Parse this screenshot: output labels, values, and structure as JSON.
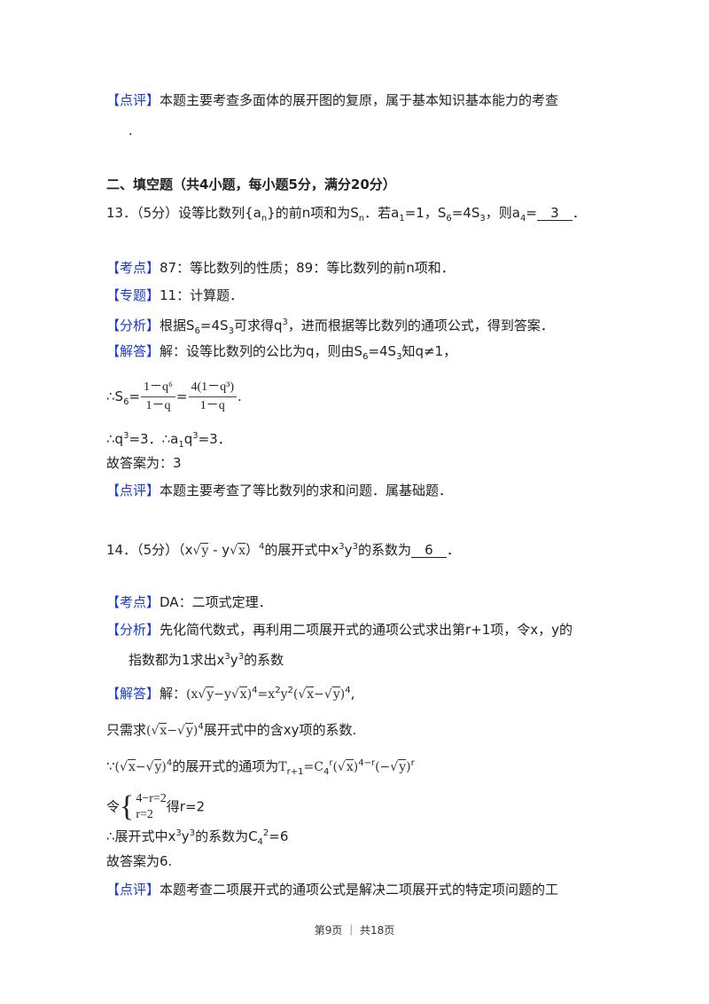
{
  "lines": [
    [
      {
        "tag": "【点评】"
      },
      {
        "t": "本题主要考查多面体的展开图的复原，属于基本知识基本能力的考查"
      }
    ],
    [
      {
        "t": "."
      }
    ],
    [
      {
        "t": "二、填空题（共4小题，每小题5分，满分20分）"
      }
    ],
    [
      {
        "t": "13．（5分）设等比数列{a"
      },
      {
        "sub": "n"
      },
      {
        "t": "}的前n项和为S"
      },
      {
        "sub": "n"
      },
      {
        "t": "．若a"
      },
      {
        "sub": "1"
      },
      {
        "t": "=1，S"
      },
      {
        "sub": "6"
      },
      {
        "t": "=4S"
      },
      {
        "sub": "3"
      },
      {
        "t": "，则a"
      },
      {
        "sub": "4"
      },
      {
        "t": "="
      },
      {
        "blank": "3"
      },
      {
        "t": "．"
      }
    ],
    [
      {
        "tag": "【考点】"
      },
      {
        "t": "87：等比数列的性质；89：等比数列的前n项和．"
      }
    ],
    [
      {
        "tag": "【专题】"
      },
      {
        "t": "11：计算题．"
      }
    ],
    [
      {
        "tag": "【分析】"
      },
      {
        "t": "根据S"
      },
      {
        "sub": "6"
      },
      {
        "t": "=4S"
      },
      {
        "sub": "3"
      },
      {
        "t": "可求得q"
      },
      {
        "sup": "3"
      },
      {
        "t": "，进而根据等比数列的通项公式，得到答案．"
      }
    ],
    [
      {
        "tag": "【解答】"
      },
      {
        "t": "解：设等比数列的公比为q，则由S"
      },
      {
        "sub": "6"
      },
      {
        "t": "=4S"
      },
      {
        "sub": "3"
      },
      {
        "t": "知q≠1，"
      }
    ],
    [
      {
        "t": "∴S"
      },
      {
        "sub": "6"
      },
      {
        "t": "="
      },
      {
        "frac": [
          "1－q⁶",
          "1－q"
        ]
      },
      {
        "t": "="
      },
      {
        "frac": [
          "4(1－q³)",
          "1－q"
        ]
      },
      {
        "t": "."
      }
    ],
    [
      {
        "t": "∴q"
      },
      {
        "sup": "3"
      },
      {
        "t": "=3．∴a"
      },
      {
        "sub": "1"
      },
      {
        "t": "q"
      },
      {
        "sup": "3"
      },
      {
        "t": "=3．"
      }
    ],
    [
      {
        "t": "故答案为：3"
      }
    ],
    [
      {
        "tag": "【点评】"
      },
      {
        "t": "本题主要考查了等比数列的求和问题．属基础题．"
      }
    ],
    [
      {
        "t": "14．（5分）（x"
      },
      {
        "sqrt": "y"
      },
      {
        "t": " - y"
      },
      {
        "sqrt": "x"
      },
      {
        "t": "）"
      },
      {
        "sup": "4"
      },
      {
        "t": "的展开式中x"
      },
      {
        "sup": "3"
      },
      {
        "t": "y"
      },
      {
        "sup": "3"
      },
      {
        "t": "的系数为"
      },
      {
        "blank": "6"
      },
      {
        "t": "．"
      }
    ],
    [
      {
        "tag": "【考点】"
      },
      {
        "t": "DA：二项式定理．"
      }
    ],
    [
      {
        "tag": "【分析】"
      },
      {
        "t": "先化简代数式，再利用二项展开式的通项公式求出第r+1项，令x，y的"
      }
    ],
    [
      {
        "t": "指数都为1求出x"
      },
      {
        "sup": "3"
      },
      {
        "t": "y"
      },
      {
        "sup": "3"
      },
      {
        "t": "的系数"
      }
    ],
    [
      {
        "tag": "【解答】"
      },
      {
        "t": "解："
      },
      {
        "m": "(x"
      },
      {
        "sqrt": "y"
      },
      {
        "m": "−y"
      },
      {
        "sqrt": "x"
      },
      {
        "m": ")"
      },
      {
        "sup": "4"
      },
      {
        "m": "=x"
      },
      {
        "sup": "2"
      },
      {
        "m": "y"
      },
      {
        "sup": "2"
      },
      {
        "m": "("
      },
      {
        "sqrt": "x"
      },
      {
        "m": "−"
      },
      {
        "sqrt": "y"
      },
      {
        "m": ")"
      },
      {
        "sup": "4"
      },
      {
        "t": ","
      }
    ],
    [
      {
        "t": "只需求"
      },
      {
        "m": "("
      },
      {
        "sqrt": "x"
      },
      {
        "m": "−"
      },
      {
        "sqrt": "y"
      },
      {
        "m": ")"
      },
      {
        "sup": "4"
      },
      {
        "t": "展开式中的含xy项的系数."
      }
    ],
    [
      {
        "t": "∵"
      },
      {
        "m": "("
      },
      {
        "sqrt": "x"
      },
      {
        "m": "−"
      },
      {
        "sqrt": "y"
      },
      {
        "m": ")"
      },
      {
        "sup": "4"
      },
      {
        "t": "的展开式的通项为"
      },
      {
        "m": "T"
      },
      {
        "sub": "r+1"
      },
      {
        "m": "=C"
      },
      {
        "sub": "4"
      },
      {
        "sup": "r"
      },
      {
        "m": "("
      },
      {
        "sqrt": "x"
      },
      {
        "m": ")"
      },
      {
        "sup": "4−r"
      },
      {
        "m": "(−"
      },
      {
        "sqrt": "y"
      },
      {
        "m": ")"
      },
      {
        "sup": "r"
      }
    ],
    [
      {
        "t": "令"
      },
      {
        "cases": [
          "4−r=2",
          "r=2"
        ]
      },
      {
        "t": "得r=2"
      }
    ],
    [
      {
        "t": "∴展开式中x"
      },
      {
        "sup": "3"
      },
      {
        "t": "y"
      },
      {
        "sup": "3"
      },
      {
        "t": "的系数为C"
      },
      {
        "sub": "4"
      },
      {
        "sup": "2"
      },
      {
        "t": "=6"
      }
    ],
    [
      {
        "t": "故答案为6."
      }
    ],
    [
      {
        "tag": "【点评】"
      },
      {
        "t": "本题考查二项展开式的通项公式是解决二项展开式的特定项问题的工"
      }
    ]
  ],
  "footer": "第9页 ｜ 共18页",
  "colors": {
    "tag": "#1a3bd6",
    "text": "#222222"
  }
}
